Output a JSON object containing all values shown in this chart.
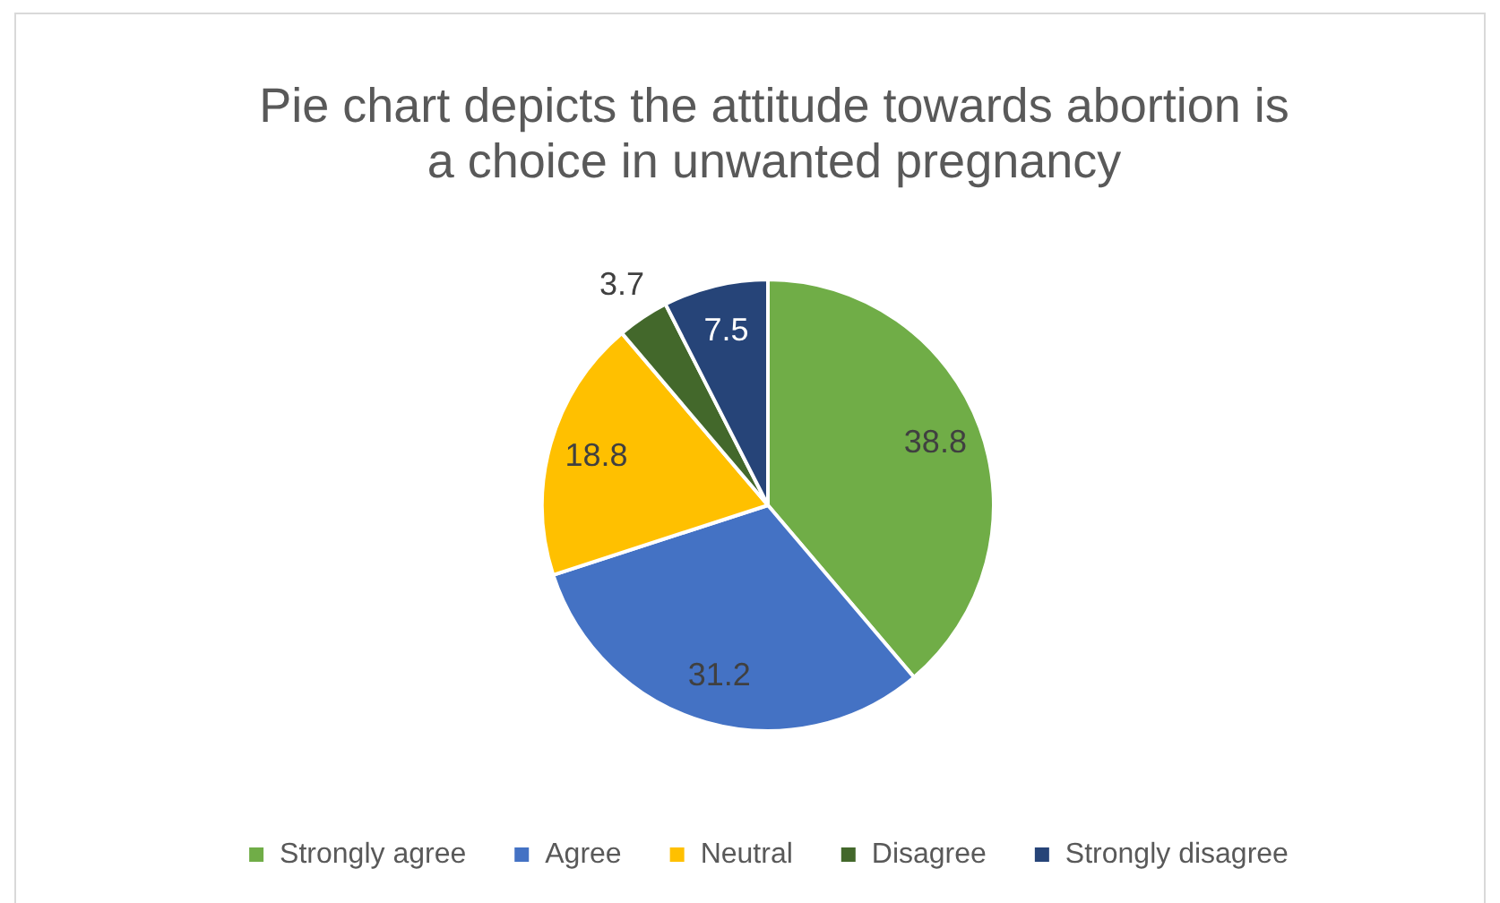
{
  "chart_data": {
    "type": "pie",
    "title": "Pie chart depicts the attitude towards abortion is a choice in unwanted pregnancy",
    "categories": [
      "Strongly agree",
      "Agree",
      "Neutral",
      "Disagree",
      "Strongly disagree"
    ],
    "values": [
      38.8,
      31.2,
      18.8,
      3.7,
      7.5
    ],
    "colors": [
      "#70ad47",
      "#4472c4",
      "#ffc000",
      "#43682b",
      "#264478"
    ],
    "data_labels": true,
    "legend": "bottom"
  }
}
